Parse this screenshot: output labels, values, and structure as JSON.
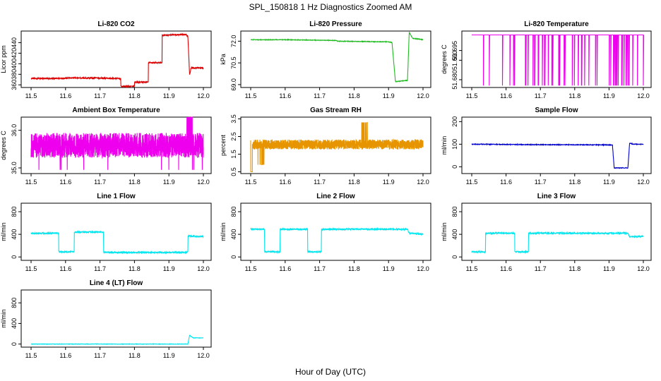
{
  "figure": {
    "title": "SPL_150818  1 Hz Diagnostics Zoomed AM",
    "xlabel": "Hour of Day (UTC)"
  },
  "chart_data": [
    {
      "type": "line",
      "title": "Li-820 CO2",
      "ylabel": "Licor ppm",
      "color": "#dd0000",
      "xlim": [
        11.5,
        12.0
      ],
      "ylim": [
        355,
        462
      ],
      "xticks": [
        "11.5",
        "11.6",
        "11.7",
        "11.8",
        "11.9",
        "12.0"
      ],
      "yticks": [
        360,
        380,
        400,
        420,
        440
      ],
      "series": [
        {
          "noise": 1.2,
          "x": [
            11.5,
            11.58,
            11.6,
            11.69,
            11.75,
            11.76,
            11.76,
            11.8,
            11.8,
            11.81,
            11.84,
            11.84,
            11.88,
            11.88,
            11.91,
            11.95,
            11.955,
            11.96,
            11.965,
            11.97,
            12.0
          ],
          "y": [
            372,
            372,
            373,
            373,
            372,
            372,
            357,
            357,
            365,
            365,
            365,
            402,
            402,
            454,
            455,
            455,
            452,
            380,
            393,
            392,
            392
          ]
        }
      ]
    },
    {
      "type": "line",
      "title": "Li-820 Pressure",
      "ylabel": "kPa",
      "color": "#22bb22",
      "xlim": [
        11.5,
        12.0
      ],
      "ylim": [
        68.8,
        72.7
      ],
      "xticks": [
        "11.5",
        "11.6",
        "11.7",
        "11.8",
        "11.9",
        "12.0"
      ],
      "yticks": [
        "69.0",
        "70.5",
        "72.0"
      ],
      "series": [
        {
          "noise": 0.02,
          "x": [
            11.5,
            11.6,
            11.75,
            11.75,
            11.9,
            11.91,
            11.92,
            11.955,
            11.96,
            11.97,
            12.0
          ],
          "y": [
            72.1,
            72.1,
            72.05,
            72.0,
            71.95,
            71.9,
            69.2,
            69.3,
            72.6,
            72.2,
            72.1
          ]
        }
      ]
    },
    {
      "type": "line",
      "title": "Li-820 Temperature",
      "ylabel": "degrees C",
      "color": "#ee00ee",
      "xlim": [
        11.5,
        12.0
      ],
      "ylim": [
        51.676,
        51.705
      ],
      "xticks": [
        "11.5",
        "11.6",
        "11.7",
        "11.8",
        "11.9",
        "12.0"
      ],
      "yticks": [
        "51.680",
        "51.690",
        "51.695"
      ],
      "series": [
        {
          "base": 51.703,
          "low": 51.677,
          "drops": 70
        }
      ]
    },
    {
      "type": "line",
      "title": "Ambient Box Temperature",
      "ylabel": "degrees C",
      "color": "#ee00ee",
      "xlim": [
        11.5,
        12.0
      ],
      "ylim": [
        34.85,
        36.35
      ],
      "xticks": [
        "11.5",
        "11.6",
        "11.7",
        "11.8",
        "11.9",
        "12.0"
      ],
      "yticks": [
        "35.0",
        "36.0"
      ],
      "series": [
        {
          "center": 35.6,
          "amp": 0.33,
          "spike": 36.35,
          "dip": 34.95
        }
      ]
    },
    {
      "type": "line",
      "title": "Gas Stream RH",
      "ylabel": "percent",
      "color": "#e69500",
      "xlim": [
        11.5,
        12.0
      ],
      "ylim": [
        0.4,
        3.6
      ],
      "xticks": [
        "11.5",
        "11.6",
        "11.7",
        "11.8",
        "11.9",
        "12.0"
      ],
      "yticks": [
        "0.5",
        "1.5",
        "2.5",
        "3.5"
      ],
      "series": [
        {
          "center": 2.05,
          "amp": 0.28,
          "low": 0.5,
          "high": 3.3
        }
      ]
    },
    {
      "type": "line",
      "title": "Sample Flow",
      "ylabel": "ml/min",
      "color": "#0000cc",
      "xlim": [
        11.5,
        12.0
      ],
      "ylim": [
        -30,
        220
      ],
      "xticks": [
        "11.5",
        "11.6",
        "11.7",
        "11.8",
        "11.9",
        "12.0"
      ],
      "yticks": [
        0,
        100,
        200
      ],
      "series": [
        {
          "noise": 1.5,
          "x": [
            11.5,
            11.7,
            11.9,
            11.91,
            11.915,
            11.955,
            11.96,
            11.97,
            12.0
          ],
          "y": [
            100,
            98,
            97,
            96,
            -5,
            -5,
            105,
            100,
            100
          ]
        }
      ]
    },
    {
      "type": "line",
      "title": "Line 1 Flow",
      "ylabel": "ml/min",
      "color": "#00e5ee",
      "xlim": [
        11.5,
        12.0
      ],
      "ylim": [
        -60,
        950
      ],
      "xticks": [
        "11.5",
        "11.6",
        "11.7",
        "11.8",
        "11.9",
        "12.0"
      ],
      "yticks": [
        0,
        400,
        800
      ],
      "series": [
        {
          "noise": 12,
          "x": [
            11.5,
            11.58,
            11.58,
            11.625,
            11.625,
            11.71,
            11.71,
            11.95,
            11.955,
            11.955,
            12.0
          ],
          "y": [
            420,
            420,
            90,
            90,
            440,
            440,
            80,
            80,
            90,
            370,
            360
          ]
        }
      ]
    },
    {
      "type": "line",
      "title": "Line 2 Flow",
      "ylabel": "ml/min",
      "color": "#00e5ee",
      "xlim": [
        11.5,
        12.0
      ],
      "ylim": [
        -60,
        950
      ],
      "xticks": [
        "11.5",
        "11.6",
        "11.7",
        "11.8",
        "11.9",
        "12.0"
      ],
      "yticks": [
        0,
        400,
        800
      ],
      "series": [
        {
          "noise": 12,
          "x": [
            11.5,
            11.54,
            11.54,
            11.585,
            11.585,
            11.665,
            11.665,
            11.705,
            11.705,
            11.955,
            11.96,
            12.0
          ],
          "y": [
            490,
            490,
            90,
            90,
            490,
            490,
            90,
            90,
            490,
            490,
            420,
            400
          ]
        }
      ]
    },
    {
      "type": "line",
      "title": "Line 3 Flow",
      "ylabel": "ml/min",
      "color": "#00e5ee",
      "xlim": [
        11.5,
        12.0
      ],
      "ylim": [
        -60,
        950
      ],
      "xticks": [
        "11.5",
        "11.6",
        "11.7",
        "11.8",
        "11.9",
        "12.0"
      ],
      "yticks": [
        0,
        400,
        800
      ],
      "series": [
        {
          "noise": 12,
          "x": [
            11.5,
            11.54,
            11.54,
            11.625,
            11.625,
            11.665,
            11.665,
            11.955,
            11.96,
            12.0
          ],
          "y": [
            90,
            90,
            420,
            420,
            90,
            90,
            420,
            420,
            360,
            360
          ]
        }
      ]
    },
    {
      "type": "line",
      "title": "Line 4 (LT) Flow",
      "ylabel": "ml/min",
      "color": "#00e5ee",
      "xlim": [
        11.5,
        12.0
      ],
      "ylim": [
        -60,
        1050
      ],
      "xticks": [
        "11.5",
        "11.6",
        "11.7",
        "11.8",
        "11.9",
        "12.0"
      ],
      "yticks": [
        0,
        400,
        800
      ],
      "series": [
        {
          "noise": 4,
          "x": [
            11.5,
            11.955,
            11.96,
            11.97,
            12.0
          ],
          "y": [
            0,
            0,
            170,
            120,
            120
          ]
        }
      ]
    }
  ]
}
